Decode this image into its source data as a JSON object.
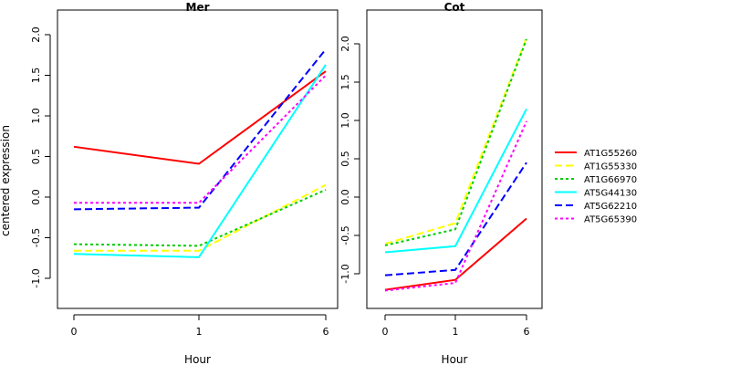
{
  "chart_data": {
    "type": "line",
    "ylabel": "centered expression",
    "xlabel": "Hour",
    "x": [
      "0",
      "1",
      "6"
    ],
    "colors": {
      "AT1G55260": "#ff0000",
      "AT1G55330": "#ffff00",
      "AT1G66970": "#00cc00",
      "AT5G44130": "#00ffff",
      "AT5G62210": "#0000ff",
      "AT5G65390": "#ff00ff"
    },
    "line_styles": {
      "AT1G55260": "solid",
      "AT1G55330": "dashed",
      "AT1G66970": "dotted",
      "AT5G44130": "solid",
      "AT5G62210": "dashed",
      "AT5G65390": "dotted"
    },
    "panels": [
      {
        "title": "Mer",
        "yticks": [
          -1.0,
          -0.5,
          0.0,
          0.5,
          1.0,
          1.5,
          2.0
        ],
        "series": [
          {
            "name": "AT1G55260",
            "values": [
              0.62,
              0.41,
              1.55
            ]
          },
          {
            "name": "AT1G55330",
            "values": [
              -0.66,
              -0.66,
              0.15
            ]
          },
          {
            "name": "AT1G66970",
            "values": [
              -0.58,
              -0.6,
              0.09
            ]
          },
          {
            "name": "AT5G44130",
            "values": [
              -0.7,
              -0.74,
              1.63
            ]
          },
          {
            "name": "AT5G62210",
            "values": [
              -0.15,
              -0.13,
              1.82
            ]
          },
          {
            "name": "AT5G65390",
            "values": [
              -0.07,
              -0.07,
              1.5
            ]
          }
        ]
      },
      {
        "title": "Cot",
        "yticks": [
          -1.0,
          -0.5,
          0.0,
          0.5,
          1.0,
          1.5,
          2.0
        ],
        "series": [
          {
            "name": "AT1G55260",
            "values": [
              -1.21,
              -1.08,
              -0.28
            ]
          },
          {
            "name": "AT1G55330",
            "values": [
              -0.61,
              -0.34,
              2.08
            ]
          },
          {
            "name": "AT1G66970",
            "values": [
              -0.63,
              -0.42,
              2.06
            ]
          },
          {
            "name": "AT5G44130",
            "values": [
              -0.72,
              -0.64,
              1.15
            ]
          },
          {
            "name": "AT5G62210",
            "values": [
              -1.02,
              -0.95,
              0.45
            ]
          },
          {
            "name": "AT5G65390",
            "values": [
              -1.22,
              -1.12,
              0.99
            ]
          }
        ]
      }
    ],
    "legend": [
      "AT1G55260",
      "AT1G55330",
      "AT1G66970",
      "AT5G44130",
      "AT5G62210",
      "AT5G65390"
    ],
    "legend_position": "right"
  }
}
